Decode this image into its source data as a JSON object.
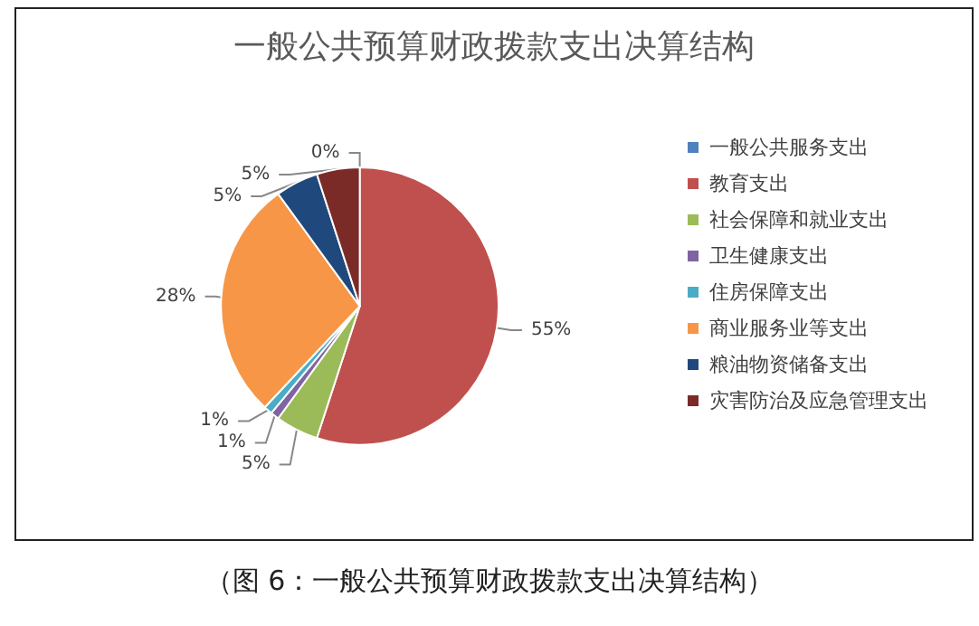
{
  "chart_data": {
    "type": "pie",
    "title": "一般公共预算财政拨款支出决算结构",
    "categories": [
      "一般公共服务支出",
      "教育支出",
      "社会保障和就业支出",
      "卫生健康支出",
      "住房保障支出",
      "商业服务业等支出",
      "粮油物资储备支出",
      "灾害防治及应急管理支出"
    ],
    "values": [
      0,
      55,
      5,
      1,
      1,
      28,
      5,
      5
    ],
    "colors": [
      "#4f81bd",
      "#c0504d",
      "#9bbb59",
      "#8064a2",
      "#4bacc6",
      "#f79646",
      "#1f497d",
      "#7b2b27"
    ],
    "value_labels": [
      "0%",
      "55%",
      "5%",
      "1%",
      "1%",
      "28%",
      "5%",
      "5%"
    ],
    "legend": "right",
    "annotations": [
      "（图 6：一般公共预算财政拨款支出决算结构）"
    ]
  }
}
